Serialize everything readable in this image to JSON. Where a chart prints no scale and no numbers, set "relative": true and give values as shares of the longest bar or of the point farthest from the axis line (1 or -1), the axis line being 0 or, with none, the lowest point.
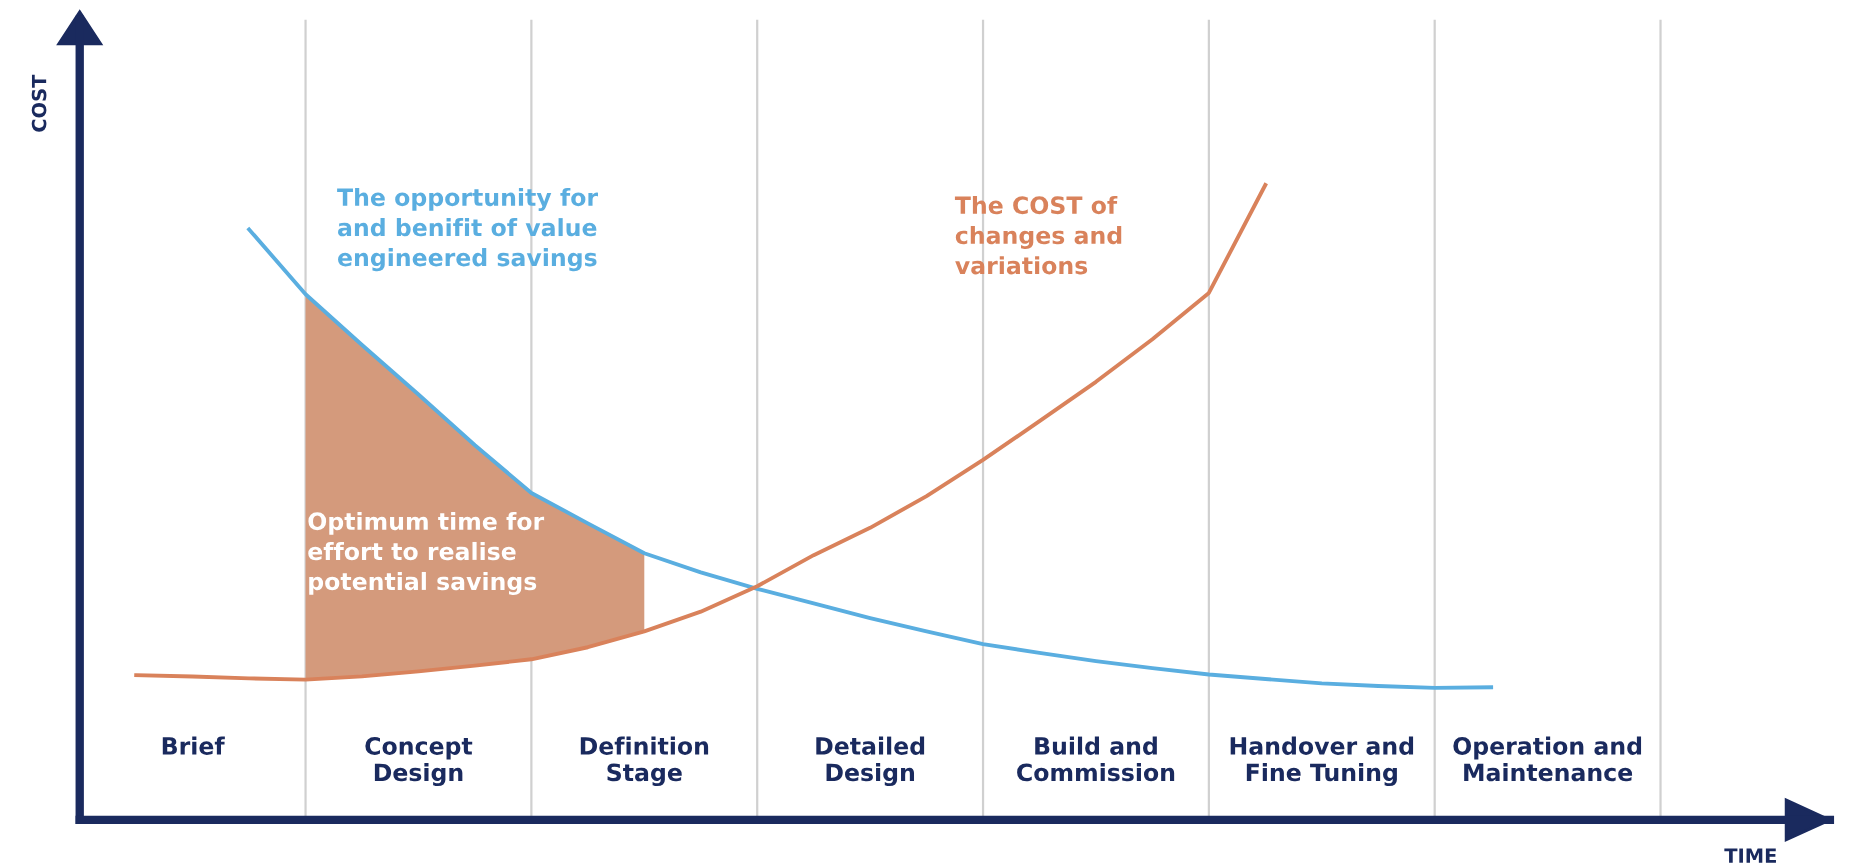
{
  "chart_data": {
    "type": "line",
    "relative": true,
    "xlabel": "TIME",
    "ylabel": "COST",
    "categories": [
      null,
      null,
      "Brief",
      null,
      null,
      null,
      "Concept\nDesign",
      null,
      null,
      null,
      "Definition\nStage",
      null,
      null,
      null,
      "Detailed\nDesign",
      null,
      null,
      null,
      "Build and\nCommission",
      null,
      null,
      null,
      "Handover and\nFine Tuning",
      null,
      null,
      null,
      "Operation and\nMaintenance",
      null,
      null
    ],
    "series": [
      {
        "color": "#5aaee0",
        "values": [
          null,
          null,
          null,
          0.93,
          0.828,
          0.748,
          0.67,
          0.59,
          0.515,
          0.467,
          0.42,
          0.39,
          0.364,
          0.341,
          0.318,
          0.297,
          0.277,
          0.263,
          0.25,
          0.239,
          0.229,
          0.222,
          0.215,
          0.211,
          0.208,
          0.209,
          null,
          null,
          null
        ]
      },
      {
        "color": "#d9825b",
        "values": [
          null,
          0.228,
          0.226,
          0.223,
          0.221,
          0.226,
          0.234,
          0.243,
          0.253,
          0.272,
          0.297,
          0.328,
          0.368,
          0.417,
          0.46,
          0.51,
          0.567,
          0.628,
          0.69,
          0.757,
          0.83,
          1.0,
          null,
          null,
          null,
          null,
          null,
          null,
          null
        ]
      },
      {
        "type": "area",
        "color": "#d49a7c",
        "values": [
          null,
          null,
          null,
          null,
          0.828,
          0.748,
          0.67,
          0.59,
          0.515,
          0.467,
          0.42,
          null,
          null,
          null,
          null,
          null,
          null,
          null,
          null,
          null,
          null,
          null,
          null,
          null,
          null,
          null,
          null,
          null,
          null
        ]
      }
    ],
    "annotations": [
      "The opportunity for\nand benifit of value\nengineered savings",
      "The COST of\nchanges and\nvariations",
      "Optimum time for\neffort to realise\npotential savings"
    ],
    "grid": "x",
    "legend": false
  }
}
